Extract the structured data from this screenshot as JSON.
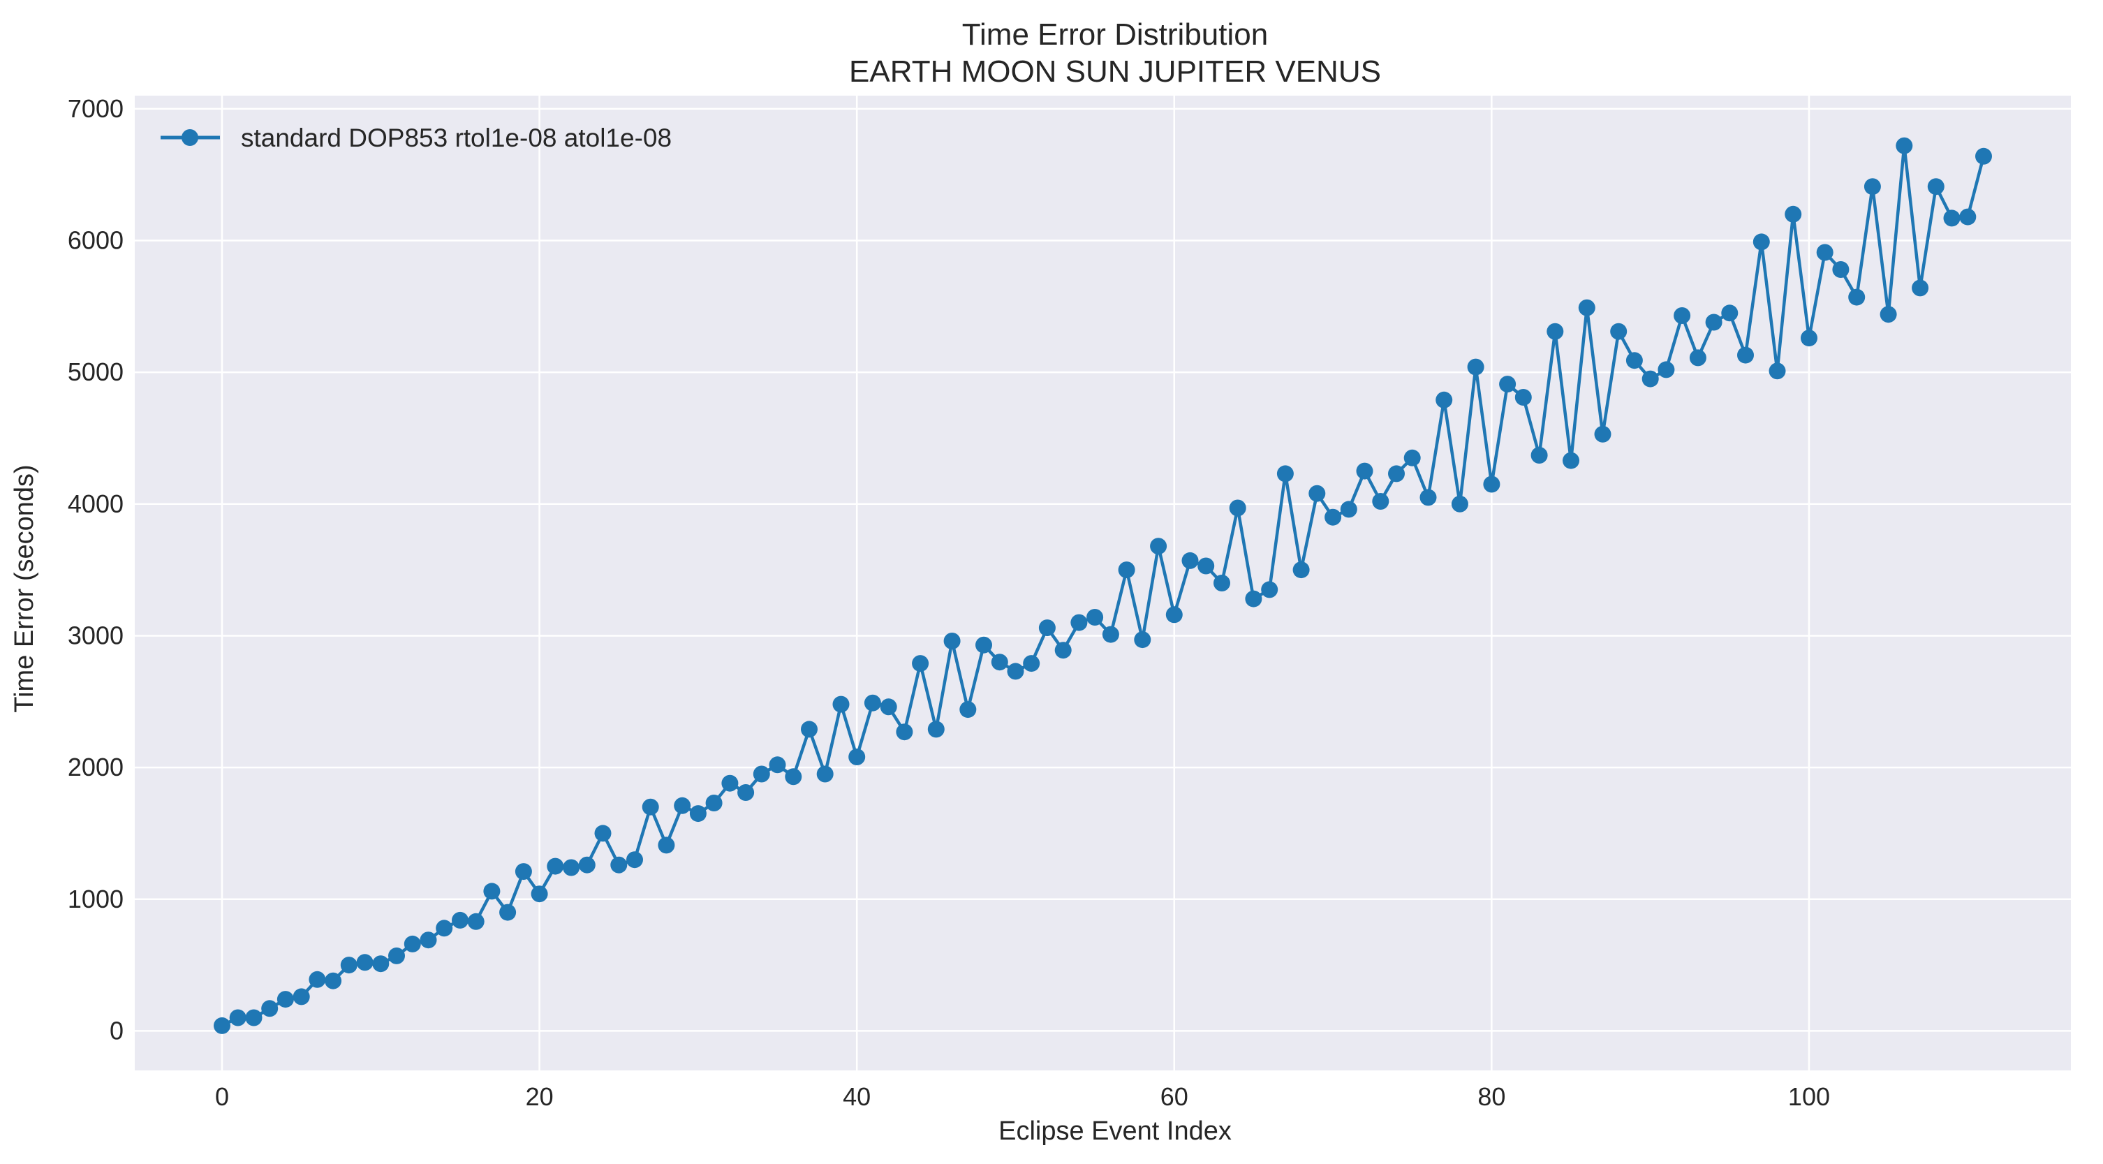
{
  "chart_data": {
    "type": "line",
    "title": "Time Error Distribution",
    "subtitle": "EARTH MOON SUN JUPITER VENUS",
    "xlabel": "Eclipse Event Index",
    "ylabel": "Time Error (seconds)",
    "xlim": [
      -5.5,
      116.5
    ],
    "ylim": [
      -300,
      7100
    ],
    "xticks": [
      0,
      20,
      40,
      60,
      80,
      100
    ],
    "yticks": [
      0,
      1000,
      2000,
      3000,
      4000,
      5000,
      6000,
      7000
    ],
    "grid": true,
    "legend_position": "top-left",
    "colors": {
      "series": "#1f77b4",
      "plot_bg": "#eaeaf2",
      "grid": "#ffffff"
    },
    "series": [
      {
        "name": "standard DOP853 rtol1e-08 atol1e-08",
        "marker": "circle",
        "x": [
          0,
          1,
          2,
          3,
          4,
          5,
          6,
          7,
          8,
          9,
          10,
          11,
          12,
          13,
          14,
          15,
          16,
          17,
          18,
          19,
          20,
          21,
          22,
          23,
          24,
          25,
          26,
          27,
          28,
          29,
          30,
          31,
          32,
          33,
          34,
          35,
          36,
          37,
          38,
          39,
          40,
          41,
          42,
          43,
          44,
          45,
          46,
          47,
          48,
          49,
          50,
          51,
          52,
          53,
          54,
          55,
          56,
          57,
          58,
          59,
          60,
          61,
          62,
          63,
          64,
          65,
          66,
          67,
          68,
          69,
          70,
          71,
          72,
          73,
          74,
          75,
          76,
          77,
          78,
          79,
          80,
          81,
          82,
          83,
          84,
          85,
          86,
          87,
          88,
          89,
          90,
          91,
          92,
          93,
          94,
          95,
          96,
          97,
          98,
          99,
          100,
          101,
          102,
          103,
          104,
          105,
          106,
          107,
          108,
          109,
          110,
          111
        ],
        "y": [
          40,
          100,
          100,
          170,
          240,
          260,
          390,
          380,
          500,
          520,
          510,
          570,
          660,
          690,
          780,
          840,
          830,
          1060,
          900,
          1210,
          1040,
          1250,
          1240,
          1260,
          1500,
          1260,
          1300,
          1700,
          1410,
          1710,
          1650,
          1730,
          1880,
          1810,
          1950,
          2020,
          1930,
          2290,
          1950,
          2480,
          2080,
          2490,
          2460,
          2270,
          2790,
          2290,
          2960,
          2440,
          2930,
          2800,
          2730,
          2790,
          3060,
          2890,
          3100,
          3140,
          3010,
          3500,
          2970,
          3680,
          3160,
          3570,
          3530,
          3400,
          3970,
          3280,
          3350,
          4230,
          3500,
          4080,
          3900,
          3960,
          4250,
          4020,
          4230,
          4350,
          4050,
          4790,
          4000,
          5040,
          4150,
          4910,
          4810,
          4370,
          5310,
          4330,
          5490,
          4530,
          5310,
          5090,
          4950,
          5020,
          5430,
          5110,
          5380,
          5450,
          5130,
          5990,
          5010,
          6200,
          5260,
          5910,
          5780,
          5570,
          6410,
          5440,
          6720,
          5640,
          6410,
          6170,
          6180,
          6640
        ]
      }
    ]
  }
}
